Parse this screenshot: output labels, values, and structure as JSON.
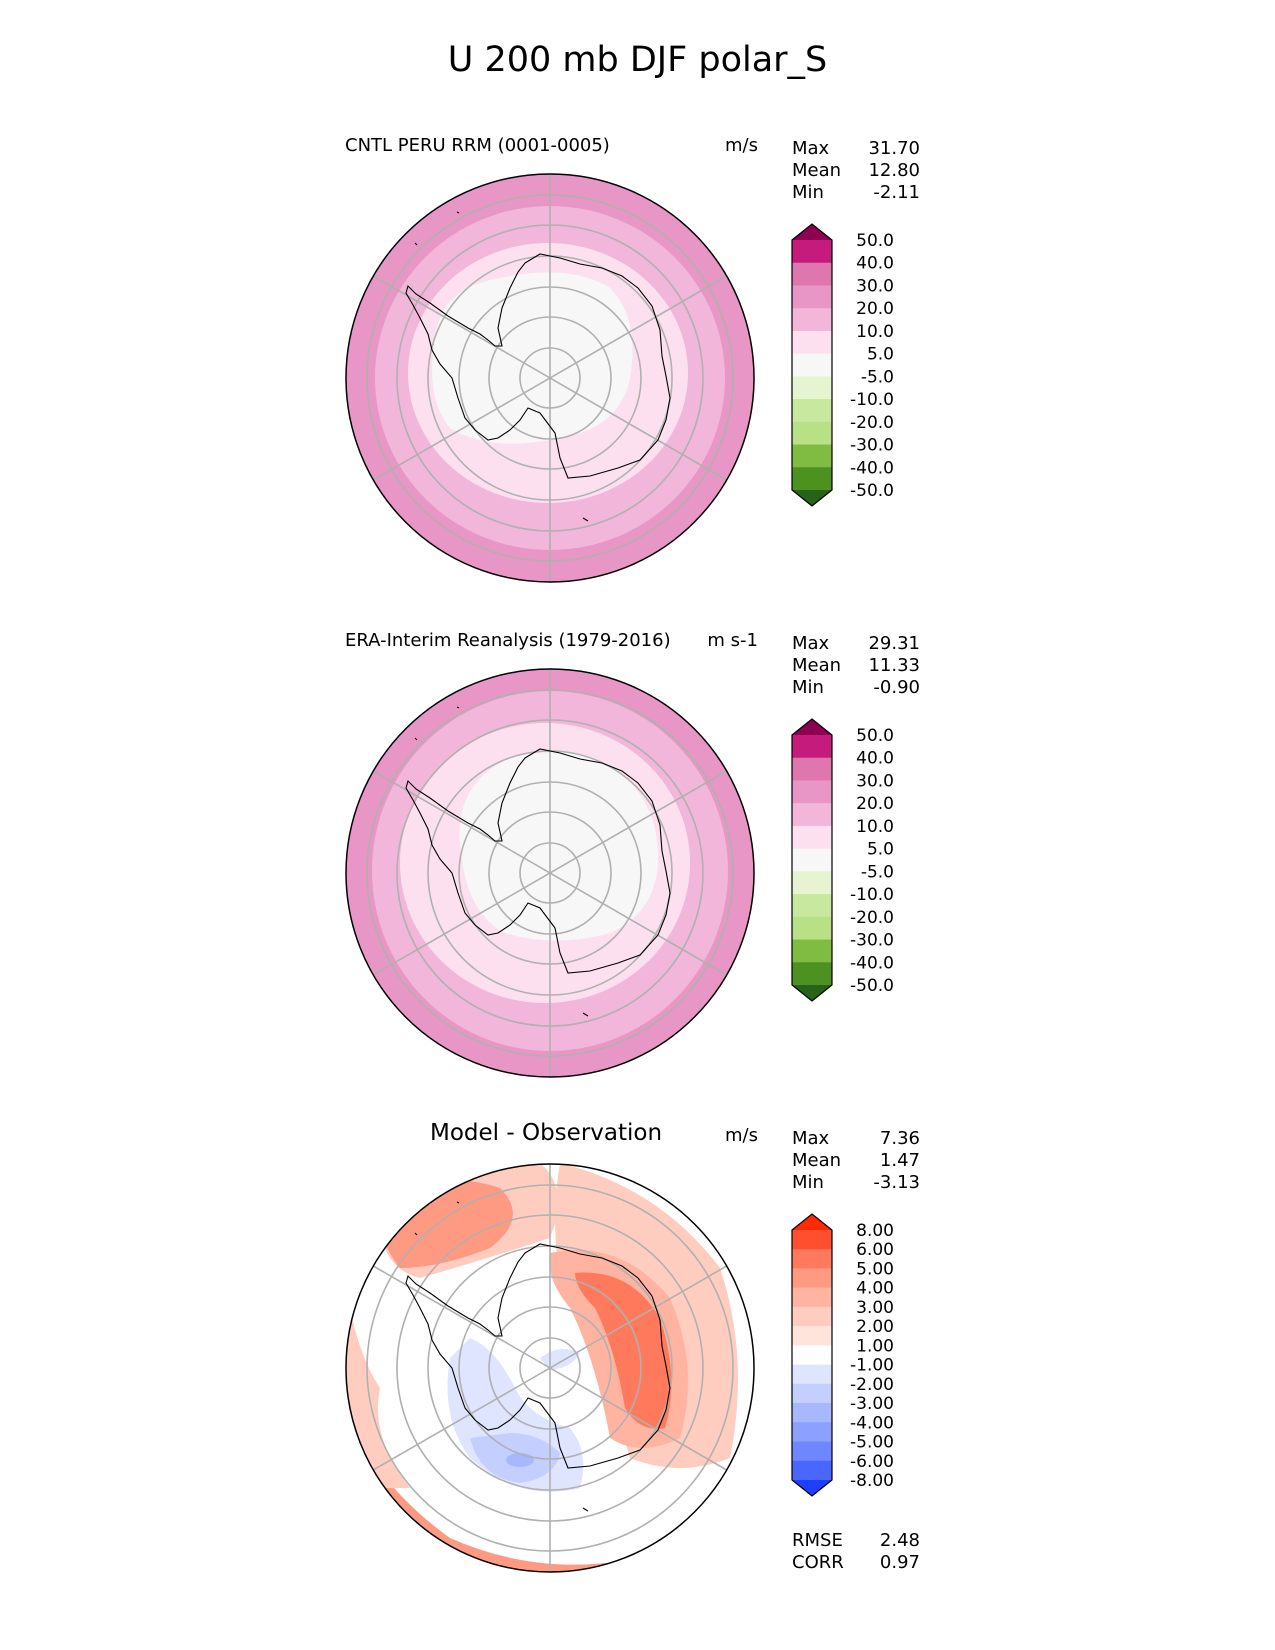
{
  "title": "U 200 mb DJF polar_S",
  "panels": [
    {
      "id": "model",
      "title": "CNTL PERU RRM (0001-0005)",
      "units": "m/s",
      "stats": {
        "max_label": "Max",
        "max": "31.70",
        "mean_label": "Mean",
        "mean": "12.80",
        "min_label": "Min",
        "min": "-2.11"
      },
      "colorbar": {
        "labels": [
          "50.0",
          "40.0",
          "30.0",
          "20.0",
          "10.0",
          "5.0",
          "-5.0",
          "-10.0",
          "-20.0",
          "-30.0",
          "-40.0",
          "-50.0"
        ],
        "colors": [
          "#8e0152",
          "#c51b7d",
          "#de77ae",
          "#e896c5",
          "#f1b6da",
          "#fde0ef",
          "#f7f7f7",
          "#e6f5d0",
          "#c8e8a0",
          "#b8e186",
          "#7fbc41",
          "#4d9221",
          "#276419"
        ]
      }
    },
    {
      "id": "obs",
      "title": "ERA-Interim Reanalysis (1979-2016)",
      "units": "m s-1",
      "stats": {
        "max_label": "Max",
        "max": "29.31",
        "mean_label": "Mean",
        "mean": "11.33",
        "min_label": "Min",
        "min": "-0.90"
      },
      "colorbar": {
        "labels": [
          "50.0",
          "40.0",
          "30.0",
          "20.0",
          "10.0",
          "5.0",
          "-5.0",
          "-10.0",
          "-20.0",
          "-30.0",
          "-40.0",
          "-50.0"
        ],
        "colors": [
          "#8e0152",
          "#c51b7d",
          "#de77ae",
          "#e896c5",
          "#f1b6da",
          "#fde0ef",
          "#f7f7f7",
          "#e6f5d0",
          "#c8e8a0",
          "#b8e186",
          "#7fbc41",
          "#4d9221",
          "#276419"
        ]
      }
    },
    {
      "id": "diff",
      "title": "Model - Observation",
      "units": "m/s",
      "stats": {
        "max_label": "Max",
        "max": "7.36",
        "mean_label": "Mean",
        "mean": "1.47",
        "min_label": "Min",
        "min": "-3.13"
      },
      "colorbar": {
        "labels": [
          "8.00",
          "6.00",
          "5.00",
          "4.00",
          "3.00",
          "2.00",
          "1.00",
          "-1.00",
          "-2.00",
          "-3.00",
          "-4.00",
          "-5.00",
          "-6.00",
          "-8.00"
        ],
        "colors": [
          "#ff2a00",
          "#ff4f2e",
          "#ff7a5c",
          "#ff9a82",
          "#ffb4a2",
          "#ffcdc0",
          "#ffe4dc",
          "#ffffff",
          "#dfe4ff",
          "#c4ceff",
          "#a8b8ff",
          "#8ca0ff",
          "#6e86ff",
          "#4a66ff",
          "#1f3fff"
        ]
      }
    }
  ],
  "metrics": {
    "rmse_label": "RMSE",
    "rmse": "2.48",
    "corr_label": "CORR",
    "corr": "0.97"
  },
  "colors": {
    "coast": "#000000",
    "grid": "#b0b0b0",
    "border": "#000000"
  }
}
